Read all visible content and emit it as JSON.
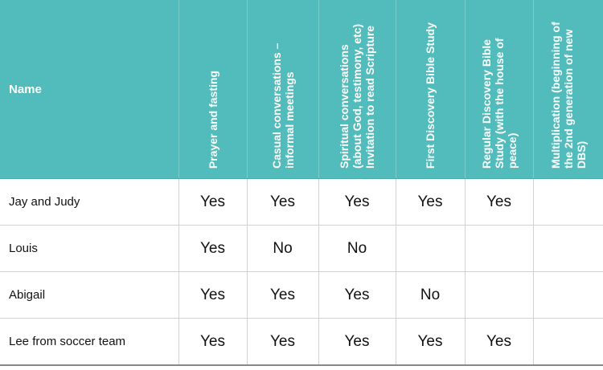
{
  "table": {
    "name_header": "Name",
    "columns": [
      "Prayer and fasting",
      "Casual conversations – informal meetings",
      "Spiritual conversations (about God, testimony, etc) Invitation to read Scripture",
      "First Discovery Bible Study",
      "Regular Discovery Bible Study (with the house of peace)",
      "Multiplication (beginning of the 2nd generation of new DBS)"
    ],
    "rows": [
      {
        "name": "Jay and Judy",
        "values": [
          "Yes",
          "Yes",
          "Yes",
          "Yes",
          "Yes",
          ""
        ]
      },
      {
        "name": "Louis",
        "values": [
          "Yes",
          "No",
          "No",
          "",
          "",
          ""
        ]
      },
      {
        "name": "Abigail",
        "values": [
          "Yes",
          "Yes",
          "Yes",
          "No",
          "",
          ""
        ]
      },
      {
        "name": "Lee from soccer team",
        "values": [
          "Yes",
          "Yes",
          "Yes",
          "Yes",
          "Yes",
          ""
        ]
      }
    ],
    "colors": {
      "header_background": "#52bcbc",
      "header_text": "#ffffff"
    }
  }
}
